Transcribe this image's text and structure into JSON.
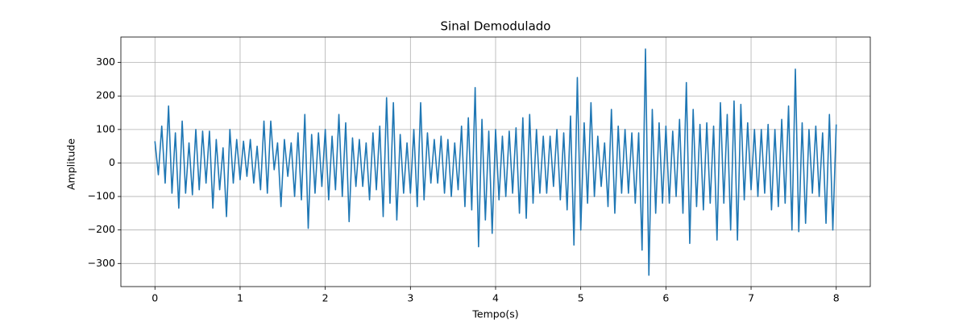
{
  "chart_data": {
    "type": "line",
    "title": "Sinal Demodulado",
    "xlabel": "Tempo(s)",
    "ylabel": "Amplitude",
    "x": [
      0,
      0.04,
      0.08,
      0.12,
      0.16,
      0.2,
      0.24,
      0.28,
      0.32,
      0.36,
      0.4,
      0.44,
      0.48,
      0.52,
      0.56,
      0.6,
      0.64,
      0.68,
      0.72,
      0.76,
      0.8,
      0.84,
      0.88,
      0.92,
      0.96,
      1,
      1.04,
      1.08,
      1.12,
      1.16,
      1.2,
      1.24,
      1.28,
      1.32,
      1.36,
      1.4,
      1.44,
      1.48,
      1.52,
      1.56,
      1.6,
      1.64,
      1.68,
      1.72,
      1.76,
      1.8,
      1.84,
      1.88,
      1.92,
      1.96,
      2,
      2.04,
      2.08,
      2.12,
      2.16,
      2.2,
      2.24,
      2.28,
      2.32,
      2.36,
      2.4,
      2.44,
      2.48,
      2.52,
      2.56,
      2.6,
      2.64,
      2.68,
      2.72,
      2.76,
      2.8,
      2.84,
      2.88,
      2.92,
      2.96,
      3,
      3.04,
      3.08,
      3.12,
      3.16,
      3.2,
      3.24,
      3.28,
      3.32,
      3.36,
      3.4,
      3.44,
      3.48,
      3.52,
      3.56,
      3.6,
      3.64,
      3.68,
      3.72,
      3.76,
      3.8,
      3.84,
      3.88,
      3.92,
      3.96,
      4,
      4.04,
      4.08,
      4.12,
      4.16,
      4.2,
      4.24,
      4.28,
      4.32,
      4.36,
      4.4,
      4.44,
      4.48,
      4.52,
      4.56,
      4.6,
      4.64,
      4.68,
      4.72,
      4.76,
      4.8,
      4.84,
      4.88,
      4.92,
      4.96,
      5,
      5.04,
      5.08,
      5.12,
      5.16,
      5.2,
      5.24,
      5.28,
      5.32,
      5.36,
      5.4,
      5.44,
      5.48,
      5.52,
      5.56,
      5.6,
      5.64,
      5.68,
      5.72,
      5.76,
      5.8,
      5.84,
      5.88,
      5.92,
      5.96,
      6,
      6.04,
      6.08,
      6.12,
      6.16,
      6.2,
      6.24,
      6.28,
      6.32,
      6.36,
      6.4,
      6.44,
      6.48,
      6.52,
      6.56,
      6.6,
      6.64,
      6.68,
      6.72,
      6.76,
      6.8,
      6.84,
      6.88,
      6.92,
      6.96,
      7,
      7.04,
      7.08,
      7.12,
      7.16,
      7.2,
      7.24,
      7.28,
      7.32,
      7.36,
      7.4,
      7.44,
      7.48,
      7.52,
      7.56,
      7.6,
      7.64,
      7.68,
      7.72,
      7.76,
      7.8,
      7.84,
      7.88,
      7.92,
      7.96,
      8
    ],
    "values": [
      65,
      -35,
      110,
      -60,
      170,
      -90,
      90,
      -135,
      125,
      -90,
      60,
      -95,
      100,
      -80,
      95,
      -60,
      95,
      -135,
      70,
      -80,
      45,
      -160,
      100,
      -60,
      70,
      -50,
      65,
      -40,
      70,
      -60,
      50,
      -80,
      125,
      -90,
      125,
      -20,
      60,
      -130,
      70,
      -40,
      60,
      -100,
      90,
      -110,
      145,
      -195,
      85,
      -90,
      90,
      -70,
      100,
      -110,
      80,
      -80,
      145,
      -100,
      120,
      -175,
      75,
      -70,
      70,
      -70,
      60,
      -110,
      90,
      -80,
      110,
      -160,
      195,
      -120,
      180,
      -170,
      85,
      -90,
      60,
      -90,
      100,
      -130,
      180,
      -110,
      90,
      -60,
      70,
      -60,
      80,
      -90,
      70,
      -100,
      60,
      -80,
      110,
      -130,
      135,
      -140,
      225,
      -250,
      130,
      -170,
      95,
      -210,
      100,
      -110,
      80,
      -100,
      95,
      -90,
      105,
      -150,
      135,
      -165,
      145,
      -120,
      100,
      -90,
      80,
      -90,
      80,
      -70,
      100,
      -110,
      90,
      -140,
      140,
      -245,
      255,
      -200,
      120,
      -120,
      180,
      -100,
      80,
      -70,
      60,
      -130,
      160,
      -150,
      110,
      -90,
      100,
      -90,
      90,
      -120,
      90,
      -260,
      340,
      -335,
      160,
      -150,
      120,
      -120,
      110,
      -120,
      95,
      -100,
      130,
      -150,
      240,
      -240,
      160,
      -130,
      115,
      -140,
      120,
      -120,
      110,
      -230,
      180,
      -120,
      145,
      -200,
      185,
      -230,
      175,
      -110,
      120,
      -80,
      100,
      -100,
      100,
      -90,
      115,
      -140,
      100,
      -130,
      130,
      -120,
      170,
      -200,
      280,
      -205,
      120,
      -180,
      100,
      -90,
      110,
      -100,
      90,
      -180,
      145,
      -200,
      115
    ],
    "color": "#1f77b4",
    "xlim": [
      -0.4,
      8.4
    ],
    "xticks": [
      0,
      1,
      2,
      3,
      4,
      5,
      6,
      7,
      8
    ],
    "ylim": [
      -369,
      376
    ],
    "yticks": [
      {
        "value": -300,
        "label": "−300"
      },
      {
        "value": -200,
        "label": "−200"
      },
      {
        "value": -100,
        "label": "−100"
      },
      0,
      100,
      200,
      300
    ],
    "grid": true
  }
}
